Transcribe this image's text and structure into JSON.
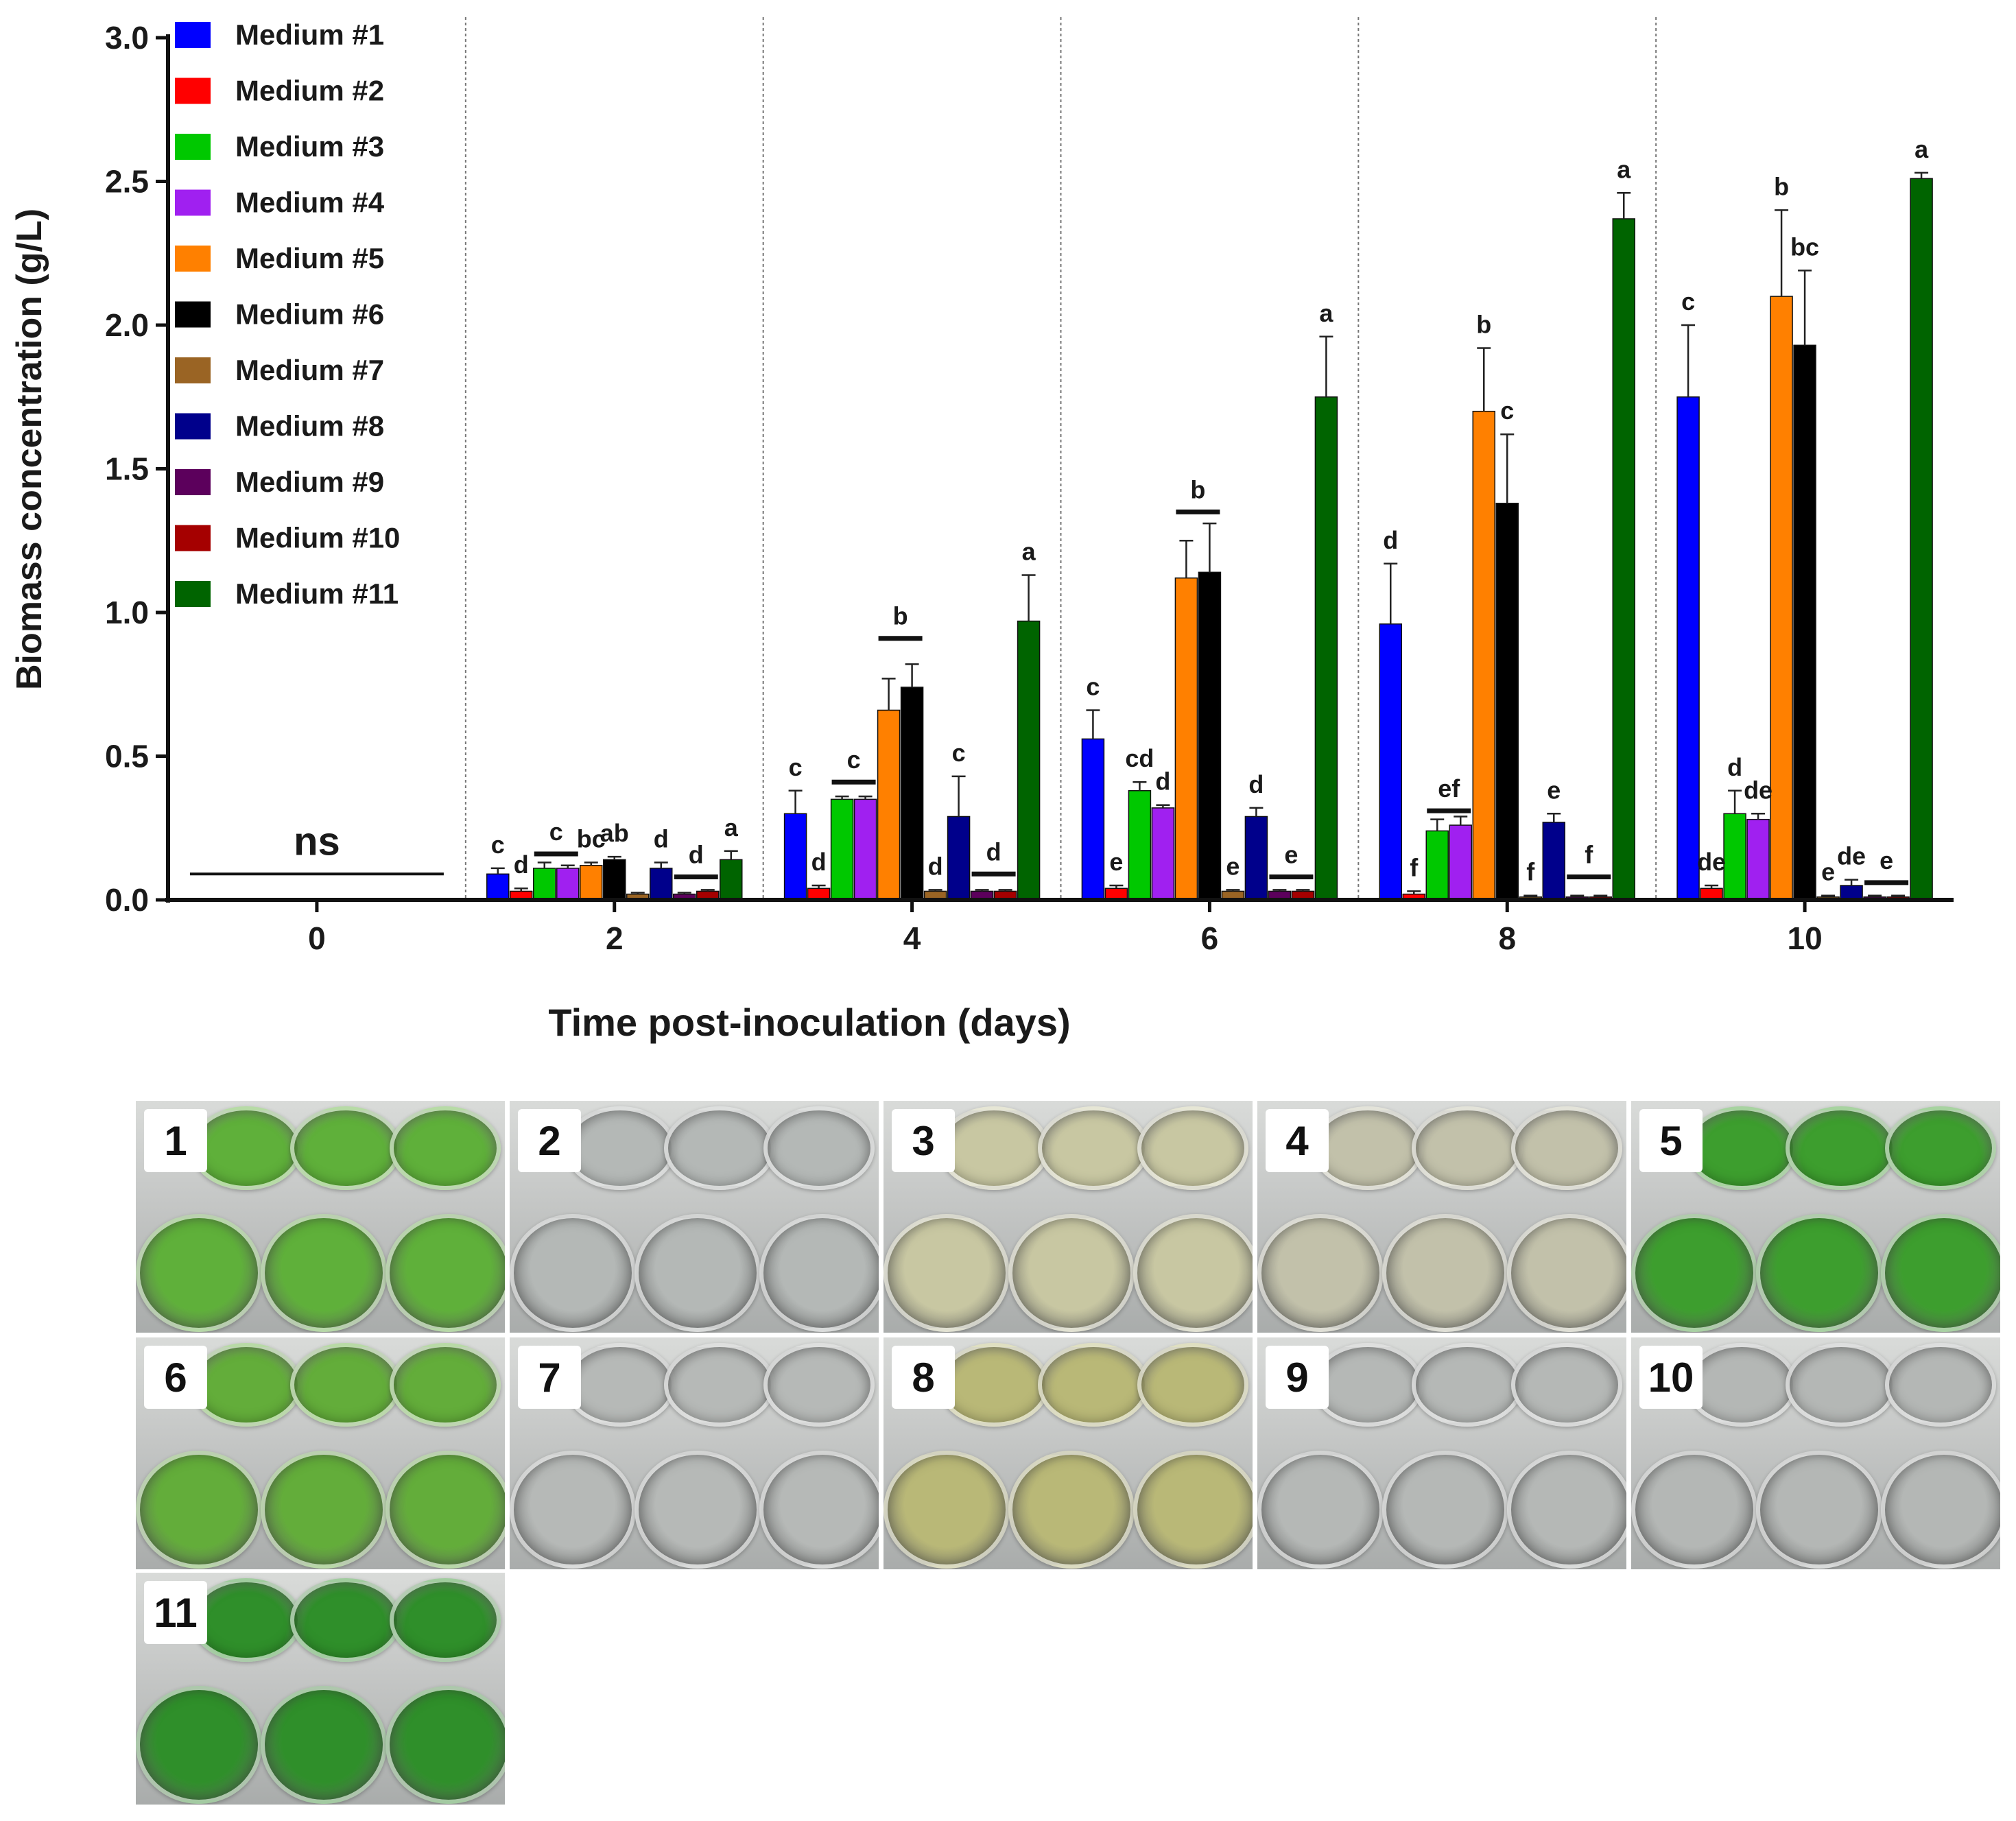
{
  "chart_data": {
    "type": "bar",
    "ylabel": "Biomass concentration (g/L)",
    "xlabel": "Time post-inoculation (days)",
    "ylim": [
      0,
      3.0
    ],
    "yticks": [
      "0.0",
      "0.5",
      "1.0",
      "1.5",
      "2.0",
      "2.5",
      "3.0"
    ],
    "categories": [
      "0",
      "2",
      "4",
      "6",
      "8",
      "10"
    ],
    "legend_position": "top-left",
    "series": [
      {
        "name": "Medium #1",
        "color": "#0000ff",
        "values": [
          0,
          0.09,
          0.3,
          0.56,
          0.96,
          1.75
        ],
        "errors": [
          0,
          0.02,
          0.08,
          0.1,
          0.21,
          0.25
        ]
      },
      {
        "name": "Medium #2",
        "color": "#ff0000",
        "values": [
          0,
          0.03,
          0.04,
          0.04,
          0.02,
          0.04
        ],
        "errors": [
          0,
          0.01,
          0.01,
          0.01,
          0.01,
          0.01
        ]
      },
      {
        "name": "Medium #3",
        "color": "#00c800",
        "values": [
          0,
          0.11,
          0.35,
          0.38,
          0.24,
          0.3
        ],
        "errors": [
          0,
          0.02,
          0.01,
          0.03,
          0.04,
          0.08
        ]
      },
      {
        "name": "Medium #4",
        "color": "#a020f0",
        "values": [
          0,
          0.11,
          0.35,
          0.32,
          0.26,
          0.28
        ],
        "errors": [
          0,
          0.01,
          0.01,
          0.01,
          0.03,
          0.02
        ]
      },
      {
        "name": "Medium #5",
        "color": "#ff8000",
        "values": [
          0,
          0.12,
          0.66,
          1.12,
          1.7,
          2.1
        ],
        "errors": [
          0,
          0.01,
          0.11,
          0.13,
          0.22,
          0.3
        ]
      },
      {
        "name": "Medium #6",
        "color": "#000000",
        "values": [
          0,
          0.14,
          0.74,
          1.14,
          1.38,
          1.93
        ],
        "errors": [
          0,
          0.01,
          0.08,
          0.17,
          0.24,
          0.26
        ]
      },
      {
        "name": "Medium #7",
        "color": "#9a6424",
        "values": [
          0,
          0.02,
          0.03,
          0.03,
          0.01,
          0.01
        ],
        "errors": [
          0,
          0.005,
          0.005,
          0.005,
          0.005,
          0.005
        ]
      },
      {
        "name": "Medium #8",
        "color": "#00008b",
        "values": [
          0,
          0.11,
          0.29,
          0.29,
          0.27,
          0.05
        ],
        "errors": [
          0,
          0.02,
          0.14,
          0.03,
          0.03,
          0.02
        ]
      },
      {
        "name": "Medium #9",
        "color": "#5c005c",
        "values": [
          0,
          0.02,
          0.03,
          0.03,
          0.01,
          0.01
        ],
        "errors": [
          0,
          0.005,
          0.005,
          0.005,
          0.005,
          0.005
        ]
      },
      {
        "name": "Medium #10",
        "color": "#a50000",
        "values": [
          0,
          0.03,
          0.03,
          0.03,
          0.01,
          0.01
        ],
        "errors": [
          0,
          0.005,
          0.005,
          0.005,
          0.005,
          0.005
        ]
      },
      {
        "name": "Medium #11",
        "color": "#006400",
        "values": [
          0,
          0.14,
          0.97,
          1.75,
          2.37,
          2.51
        ],
        "errors": [
          0,
          0.03,
          0.16,
          0.21,
          0.09,
          0.02
        ]
      }
    ],
    "annotations": [
      {
        "cat": 0,
        "text": "ns",
        "type": "group",
        "from": 0,
        "to": 10,
        "y": 0.09
      },
      {
        "cat": 1,
        "text": "c",
        "type": "label",
        "series": 0
      },
      {
        "cat": 1,
        "text": "d",
        "type": "label",
        "series": 1
      },
      {
        "cat": 1,
        "text": "c",
        "type": "group",
        "from": 2,
        "to": 3,
        "y": 0.16
      },
      {
        "cat": 1,
        "text": "bc",
        "type": "label",
        "series": 4
      },
      {
        "cat": 1,
        "text": "ab",
        "type": "label",
        "series": 5
      },
      {
        "cat": 1,
        "text": "d",
        "type": "label",
        "series": 7
      },
      {
        "cat": 1,
        "text": "d",
        "type": "group",
        "from": 8,
        "to": 9,
        "y": 0.08
      },
      {
        "cat": 1,
        "text": "a",
        "type": "label",
        "series": 10
      },
      {
        "cat": 2,
        "text": "c",
        "type": "label",
        "series": 0
      },
      {
        "cat": 2,
        "text": "d",
        "type": "label",
        "series": 1
      },
      {
        "cat": 2,
        "text": "c",
        "type": "group",
        "from": 2,
        "to": 3,
        "y": 0.41
      },
      {
        "cat": 2,
        "text": "b",
        "type": "group",
        "from": 4,
        "to": 5,
        "y": 0.91
      },
      {
        "cat": 2,
        "text": "d",
        "type": "label",
        "series": 6
      },
      {
        "cat": 2,
        "text": "c",
        "type": "label",
        "series": 7
      },
      {
        "cat": 2,
        "text": "d",
        "type": "group",
        "from": 8,
        "to": 9,
        "y": 0.09
      },
      {
        "cat": 2,
        "text": "a",
        "type": "label",
        "series": 10
      },
      {
        "cat": 3,
        "text": "c",
        "type": "label",
        "series": 0
      },
      {
        "cat": 3,
        "text": "e",
        "type": "label",
        "series": 1
      },
      {
        "cat": 3,
        "text": "cd",
        "type": "label",
        "series": 2
      },
      {
        "cat": 3,
        "text": "d",
        "type": "label",
        "series": 3
      },
      {
        "cat": 3,
        "text": "b",
        "type": "group",
        "from": 4,
        "to": 5,
        "y": 1.35
      },
      {
        "cat": 3,
        "text": "e",
        "type": "label",
        "series": 6
      },
      {
        "cat": 3,
        "text": "d",
        "type": "label",
        "series": 7
      },
      {
        "cat": 3,
        "text": "e",
        "type": "group",
        "from": 8,
        "to": 9,
        "y": 0.08
      },
      {
        "cat": 3,
        "text": "a",
        "type": "label",
        "series": 10
      },
      {
        "cat": 4,
        "text": "d",
        "type": "label",
        "series": 0
      },
      {
        "cat": 4,
        "text": "f",
        "type": "label",
        "series": 1
      },
      {
        "cat": 4,
        "text": "ef",
        "type": "group",
        "from": 2,
        "to": 3,
        "y": 0.31
      },
      {
        "cat": 4,
        "text": "b",
        "type": "label",
        "series": 4
      },
      {
        "cat": 4,
        "text": "c",
        "type": "label",
        "series": 5
      },
      {
        "cat": 4,
        "text": "f",
        "type": "label",
        "series": 6
      },
      {
        "cat": 4,
        "text": "e",
        "type": "label",
        "series": 7
      },
      {
        "cat": 4,
        "text": "f",
        "type": "group",
        "from": 8,
        "to": 9,
        "y": 0.08
      },
      {
        "cat": 4,
        "text": "a",
        "type": "label",
        "series": 10
      },
      {
        "cat": 5,
        "text": "c",
        "type": "label",
        "series": 0
      },
      {
        "cat": 5,
        "text": "de",
        "type": "label",
        "series": 1
      },
      {
        "cat": 5,
        "text": "d",
        "type": "label",
        "series": 2
      },
      {
        "cat": 5,
        "text": "de",
        "type": "label",
        "series": 3
      },
      {
        "cat": 5,
        "text": "b",
        "type": "label",
        "series": 4
      },
      {
        "cat": 5,
        "text": "bc",
        "type": "label",
        "series": 5
      },
      {
        "cat": 5,
        "text": "e",
        "type": "label",
        "series": 6
      },
      {
        "cat": 5,
        "text": "de",
        "type": "label",
        "series": 7
      },
      {
        "cat": 5,
        "text": "e",
        "type": "group",
        "from": 8,
        "to": 9,
        "y": 0.06
      },
      {
        "cat": 5,
        "text": "a",
        "type": "label",
        "series": 10
      }
    ]
  },
  "photos": [
    {
      "label": "1",
      "liquid": "#5fb03a"
    },
    {
      "label": "2",
      "liquid": "#b4b8b6"
    },
    {
      "label": "3",
      "liquid": "#c8c7a2"
    },
    {
      "label": "4",
      "liquid": "#c2c1aa"
    },
    {
      "label": "5",
      "liquid": "#3d9e2e"
    },
    {
      "label": "6",
      "liquid": "#63ad3a"
    },
    {
      "label": "7",
      "liquid": "#b6b9b7"
    },
    {
      "label": "8",
      "liquid": "#b9b877"
    },
    {
      "label": "9",
      "liquid": "#b5b8b6"
    },
    {
      "label": "10",
      "liquid": "#b4b7b5"
    },
    {
      "label": "11",
      "liquid": "#2f8f2a"
    }
  ]
}
